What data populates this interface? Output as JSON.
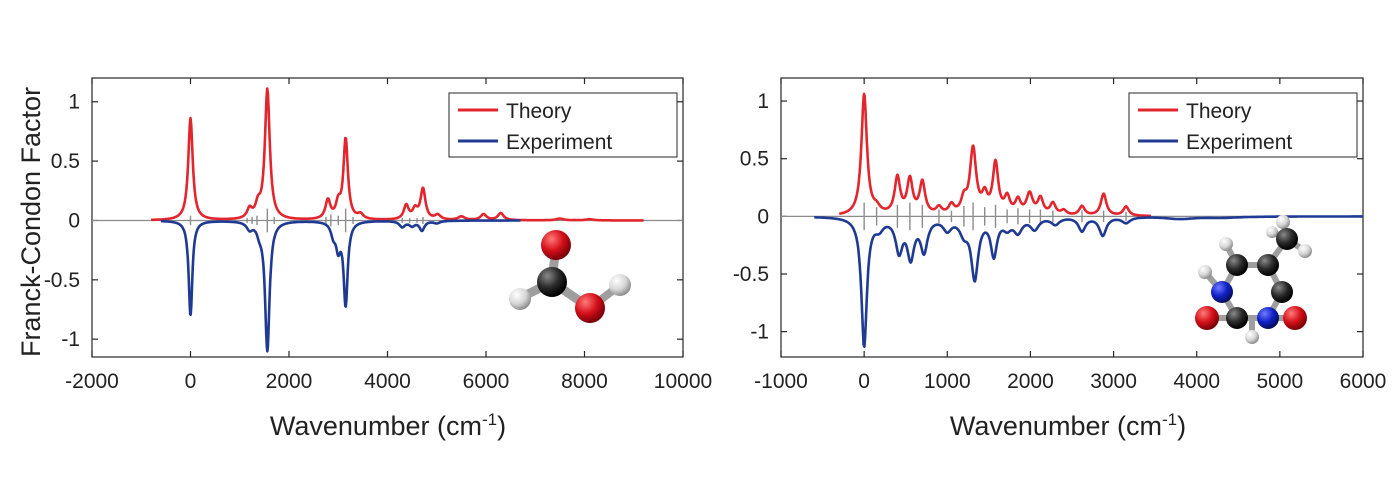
{
  "figure": {
    "shared_ylabel": "Franck-Condon Factor",
    "xlabel_main": "Wavenumber (cm",
    "xlabel_sup": "-1",
    "xlabel_close": ")"
  },
  "chart_data": [
    {
      "type": "line",
      "panel": "left",
      "molecule": "formic acid (ball-and-stick model)",
      "xlim": [
        -2000,
        10000
      ],
      "ylim": [
        -1.15,
        1.2
      ],
      "xticks": [
        -2000,
        0,
        2000,
        4000,
        6000,
        8000,
        10000
      ],
      "xtick_labels": [
        "-2000",
        "0",
        "2000",
        "4000",
        "6000",
        "8000",
        "10000"
      ],
      "yticks": [
        1,
        0.5,
        0,
        -0.5,
        -1
      ],
      "ytick_labels": [
        "1",
        "0.5",
        "0",
        "-0.5",
        "-1"
      ],
      "legend_position": "top-right",
      "series": [
        {
          "name": "Theory",
          "color": "#e3262e",
          "sign": 1,
          "x_range": [
            -800,
            9200
          ],
          "peaks": [
            [
              0,
              0.86,
              55
            ],
            [
              1200,
              0.08,
              60
            ],
            [
              1370,
              0.1,
              60
            ],
            [
              1560,
              1.1,
              60
            ],
            [
              2790,
              0.16,
              60
            ],
            [
              3000,
              0.12,
              55
            ],
            [
              3150,
              0.68,
              55
            ],
            [
              3450,
              0.04,
              70
            ],
            [
              4380,
              0.12,
              60
            ],
            [
              4560,
              0.08,
              60
            ],
            [
              4720,
              0.26,
              60
            ],
            [
              5020,
              0.04,
              70
            ],
            [
              5500,
              0.03,
              80
            ],
            [
              5950,
              0.05,
              70
            ],
            [
              6300,
              0.06,
              70
            ],
            [
              7500,
              0.015,
              90
            ],
            [
              8100,
              0.01,
              90
            ]
          ]
        },
        {
          "name": "Experiment",
          "color": "#1f3a93",
          "sign": -1,
          "x_range": [
            -600,
            6700
          ],
          "peaks": [
            [
              0,
              0.8,
              45
            ],
            [
              1200,
              0.06,
              70
            ],
            [
              1400,
              0.07,
              60
            ],
            [
              1560,
              1.09,
              55
            ],
            [
              2900,
              0.1,
              60
            ],
            [
              3000,
              0.2,
              55
            ],
            [
              3150,
              0.7,
              50
            ],
            [
              4300,
              0.05,
              70
            ],
            [
              4500,
              0.04,
              70
            ],
            [
              4700,
              0.08,
              60
            ],
            [
              5000,
              0.02,
              80
            ]
          ]
        }
      ],
      "stick_spectrum": {
        "color": "#8c8c8c",
        "x": [
          0,
          1150,
          1250,
          1350,
          1560,
          1700,
          2750,
          2850,
          3000,
          3150,
          3300,
          4300,
          4450,
          4600,
          4720
        ],
        "y": [
          0.04,
          0.02,
          0.03,
          0.04,
          0.1,
          0.03,
          0.03,
          0.05,
          0.04,
          0.1,
          0.03,
          0.02,
          0.02,
          0.02,
          0.03
        ]
      }
    },
    {
      "type": "line",
      "panel": "right",
      "molecule": "thymine (ball-and-stick model)",
      "xlim": [
        -1000,
        6000
      ],
      "ylim": [
        -1.22,
        1.2
      ],
      "xticks": [
        -1000,
        0,
        1000,
        2000,
        3000,
        4000,
        5000,
        6000
      ],
      "xtick_labels": [
        "-1000",
        "0",
        "1000",
        "2000",
        "3000",
        "4000",
        "5000",
        "6000"
      ],
      "yticks": [
        1,
        0.5,
        0,
        -0.5,
        -1
      ],
      "ytick_labels": [
        "1",
        "0.5",
        "0",
        "-0.5",
        "-1"
      ],
      "legend_position": "top-right",
      "series": [
        {
          "name": "Theory",
          "color": "#e3262e",
          "sign": 1,
          "x_range": [
            -300,
            3450
          ],
          "peaks": [
            [
              0,
              1.05,
              40
            ],
            [
              150,
              0.05,
              50
            ],
            [
              400,
              0.32,
              40
            ],
            [
              550,
              0.3,
              40
            ],
            [
              700,
              0.28,
              40
            ],
            [
              900,
              0.06,
              40
            ],
            [
              1050,
              0.08,
              40
            ],
            [
              1200,
              0.12,
              40
            ],
            [
              1310,
              0.57,
              45
            ],
            [
              1450,
              0.15,
              40
            ],
            [
              1580,
              0.44,
              40
            ],
            [
              1720,
              0.14,
              40
            ],
            [
              1850,
              0.12,
              40
            ],
            [
              1990,
              0.18,
              45
            ],
            [
              2120,
              0.14,
              40
            ],
            [
              2270,
              0.1,
              40
            ],
            [
              2400,
              0.04,
              40
            ],
            [
              2620,
              0.08,
              40
            ],
            [
              2880,
              0.19,
              40
            ],
            [
              3150,
              0.08,
              40
            ]
          ]
        },
        {
          "name": "Experiment",
          "color": "#1f3a93",
          "sign": -1,
          "x_range": [
            -600,
            6000
          ],
          "peaks": [
            [
              0,
              1.12,
              40
            ],
            [
              180,
              0.08,
              60
            ],
            [
              420,
              0.28,
              50
            ],
            [
              560,
              0.33,
              50
            ],
            [
              720,
              0.28,
              50
            ],
            [
              1000,
              0.1,
              60
            ],
            [
              1200,
              0.12,
              60
            ],
            [
              1330,
              0.52,
              50
            ],
            [
              1560,
              0.32,
              45
            ],
            [
              1720,
              0.08,
              60
            ],
            [
              1850,
              0.12,
              60
            ],
            [
              2050,
              0.1,
              60
            ],
            [
              2300,
              0.06,
              60
            ],
            [
              2620,
              0.12,
              50
            ],
            [
              2870,
              0.16,
              50
            ],
            [
              3150,
              0.05,
              60
            ],
            [
              3800,
              0.02,
              200
            ],
            [
              4300,
              0.01,
              250
            ]
          ]
        }
      ],
      "stick_spectrum": {
        "color": "#8c8c8c",
        "x": [
          0,
          150,
          400,
          550,
          700,
          900,
          1050,
          1200,
          1310,
          1450,
          1580,
          1720,
          1850,
          1990,
          2120,
          2270,
          2620,
          2880,
          3150
        ],
        "y": [
          0.12,
          0.08,
          0.1,
          0.12,
          0.1,
          0.06,
          0.05,
          0.09,
          0.12,
          0.08,
          0.1,
          0.06,
          0.07,
          0.06,
          0.06,
          0.05,
          0.05,
          0.05,
          0.04
        ]
      }
    }
  ]
}
